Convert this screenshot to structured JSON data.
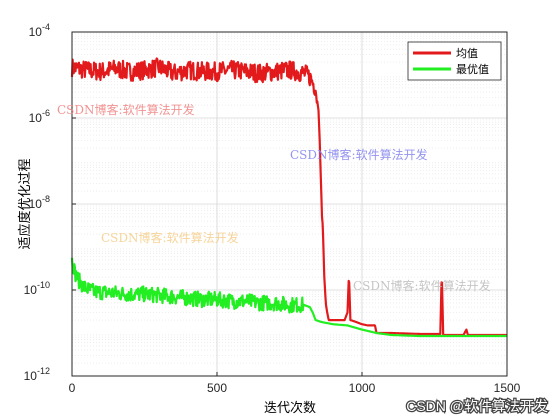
{
  "chart_data": {
    "type": "line",
    "title": "",
    "xlabel": "迭代次数",
    "ylabel": "适应度优化过程",
    "xlim": [
      0,
      1500
    ],
    "ylim": [
      1e-12,
      0.0001
    ],
    "yscale": "log",
    "grid": true,
    "minor_grid": true,
    "legend_position": "top-right",
    "x_ticks": [
      0,
      500,
      1000,
      1500
    ],
    "y_ticks": [
      {
        "value": 1e-12,
        "base": "10",
        "exp": "-12"
      },
      {
        "value": 1e-10,
        "base": "10",
        "exp": "-10"
      },
      {
        "value": 1e-08,
        "base": "10",
        "exp": "-8"
      },
      {
        "value": 1e-06,
        "base": "10",
        "exp": "-6"
      },
      {
        "value": 0.0001,
        "base": "10",
        "exp": "-4"
      }
    ],
    "series": [
      {
        "name": "均值",
        "color": "#e31a1c",
        "x": [
          0,
          50,
          100,
          150,
          200,
          250,
          300,
          350,
          400,
          450,
          500,
          550,
          600,
          650,
          700,
          750,
          800,
          820,
          840,
          850,
          855,
          860,
          862,
          865,
          870,
          875,
          880,
          885,
          890,
          900,
          920,
          940,
          950,
          955,
          960,
          980,
          1000,
          1020,
          1040,
          1045,
          1050,
          1100,
          1200,
          1250,
          1270,
          1275,
          1280,
          1300,
          1350,
          1360,
          1365,
          1370,
          1400,
          1450,
          1500
        ],
        "y": [
          1.5e-05,
          1.3e-05,
          1.2e-05,
          1.4e-05,
          1.2e-05,
          1.3e-05,
          1.5e-05,
          1.1e-05,
          1.3e-05,
          1.2e-05,
          1.2e-05,
          1.3e-05,
          1.2e-05,
          1.1e-05,
          1.2e-05,
          1.3e-05,
          1.1e-05,
          9e-06,
          5e-06,
          1.5e-06,
          2e-07,
          1.5e-08,
          5e-09,
          3e-09,
          2e-10,
          5e-11,
          3e-11,
          2e-11,
          2e-11,
          2e-11,
          2e-11,
          2e-11,
          3e-11,
          2.5e-10,
          2e-11,
          1.8e-11,
          1.6e-11,
          1.5e-11,
          1.5e-11,
          1.5e-11,
          1e-11,
          1e-11,
          9.5e-12,
          9.5e-12,
          9.5e-12,
          3e-10,
          9e-12,
          9e-12,
          9e-12,
          1.2e-11,
          9e-12,
          9e-12,
          9e-12,
          9e-12,
          9e-12
        ]
      },
      {
        "name": "最优值",
        "color": "#22ee22",
        "x": [
          0,
          5,
          10,
          20,
          40,
          60,
          80,
          100,
          150,
          200,
          250,
          300,
          350,
          400,
          450,
          500,
          550,
          600,
          650,
          700,
          750,
          800,
          820,
          830,
          840,
          860,
          880,
          900,
          950,
          1000,
          1050,
          1100,
          1200,
          1300,
          1400,
          1500
        ],
        "y": [
          5e-10,
          4e-10,
          2.5e-10,
          1.8e-10,
          1.2e-10,
          1e-10,
          9e-11,
          9e-11,
          8.5e-11,
          8e-11,
          8e-11,
          7.5e-11,
          7e-11,
          6.5e-11,
          6e-11,
          6e-11,
          5.5e-11,
          5.5e-11,
          5e-11,
          5e-11,
          4.5e-11,
          4.5e-11,
          4e-11,
          3e-11,
          2e-11,
          1.8e-11,
          1.7e-11,
          1.6e-11,
          1.5e-11,
          1.2e-11,
          1e-11,
          9e-12,
          8.5e-12,
          8.5e-12,
          8.5e-12,
          8.5e-12
        ]
      }
    ]
  },
  "watermarks": [
    {
      "text": "CSDN博客:软件算法开发",
      "color": "#f08080"
    },
    {
      "text": "CSDN博客:软件算法开发",
      "color": "#8080ee"
    },
    {
      "text": "CSDN博客:软件算法开发",
      "color": "#f5cc88"
    },
    {
      "text": "CSDN博客:软件算法开发",
      "color": "#bbbbbb"
    }
  ],
  "footer_watermark": "CSDN @软件算法开发"
}
